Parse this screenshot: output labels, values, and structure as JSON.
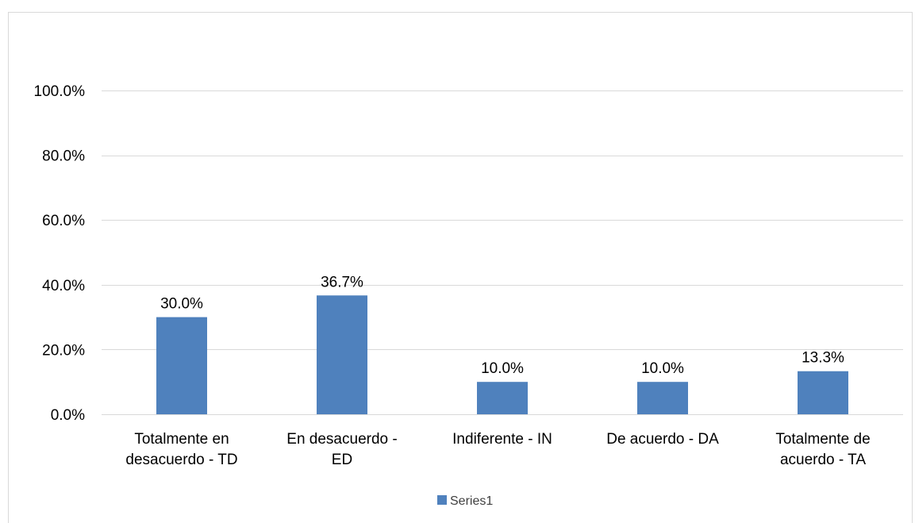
{
  "chart_data": {
    "type": "bar",
    "categories": [
      [
        "Totalmente en",
        "desacuerdo - TD"
      ],
      [
        "En desacuerdo -",
        "ED"
      ],
      [
        "Indiferente - IN"
      ],
      [
        "De acuerdo - DA"
      ],
      [
        "Totalmente de",
        "acuerdo - TA"
      ]
    ],
    "series": [
      {
        "name": "Series1",
        "values": [
          30.0,
          36.7,
          10.0,
          10.0,
          13.3
        ],
        "color": "#4f81bd"
      }
    ],
    "data_labels": [
      "30.0%",
      "36.7%",
      "10.0%",
      "10.0%",
      "13.3%"
    ],
    "y_ticks": [
      0,
      20,
      40,
      60,
      80,
      100
    ],
    "y_tick_labels": [
      "0.0%",
      "20.0%",
      "40.0%",
      "60.0%",
      "80.0%",
      "100.0%"
    ],
    "ylim": [
      0,
      100
    ],
    "grid": true,
    "gridline_color": "#d9d9d9",
    "legend_position": "bottom",
    "title": "",
    "xlabel": "",
    "ylabel": ""
  }
}
